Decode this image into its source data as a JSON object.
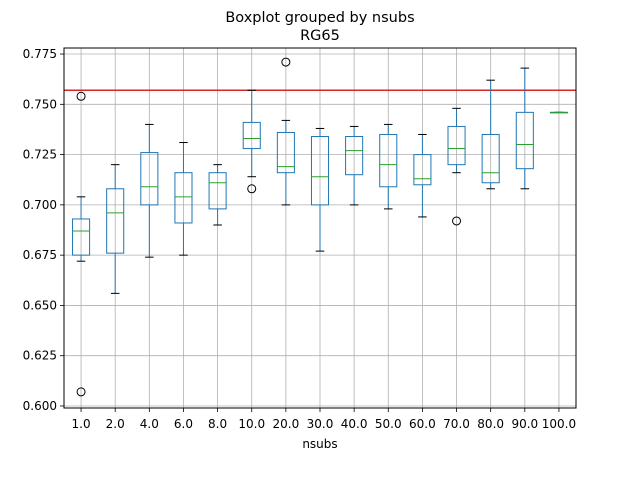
{
  "title_line1": "Boxplot grouped by nsubs",
  "title_line2": "RG65",
  "colors": {
    "box": "#1f77b4",
    "median": "#2ca02c",
    "refline": "#d62728",
    "grid": "#b0b0b0"
  },
  "chart_data": {
    "type": "boxplot",
    "xlabel": "nsubs",
    "ylabel": "",
    "ylim": [
      0.599,
      0.778
    ],
    "yticks": [
      "0.600",
      "0.625",
      "0.650",
      "0.675",
      "0.700",
      "0.725",
      "0.750",
      "0.775"
    ],
    "grid": true,
    "reference_line": 0.757,
    "categories": [
      "1.0",
      "2.0",
      "4.0",
      "6.0",
      "8.0",
      "10.0",
      "20.0",
      "30.0",
      "40.0",
      "50.0",
      "60.0",
      "70.0",
      "80.0",
      "90.0",
      "100.0"
    ],
    "boxes": [
      {
        "whislo": 0.672,
        "q1": 0.675,
        "med": 0.687,
        "q3": 0.693,
        "whishi": 0.704,
        "fliers": [
          0.754,
          0.607
        ]
      },
      {
        "whislo": 0.656,
        "q1": 0.676,
        "med": 0.696,
        "q3": 0.708,
        "whishi": 0.72,
        "fliers": []
      },
      {
        "whislo": 0.674,
        "q1": 0.7,
        "med": 0.709,
        "q3": 0.726,
        "whishi": 0.74,
        "fliers": []
      },
      {
        "whislo": 0.675,
        "q1": 0.691,
        "med": 0.704,
        "q3": 0.716,
        "whishi": 0.731,
        "fliers": []
      },
      {
        "whislo": 0.69,
        "q1": 0.698,
        "med": 0.711,
        "q3": 0.716,
        "whishi": 0.72,
        "fliers": []
      },
      {
        "whislo": 0.714,
        "q1": 0.728,
        "med": 0.733,
        "q3": 0.741,
        "whishi": 0.757,
        "fliers": [
          0.708
        ]
      },
      {
        "whislo": 0.7,
        "q1": 0.716,
        "med": 0.719,
        "q3": 0.736,
        "whishi": 0.742,
        "fliers": [
          0.771
        ]
      },
      {
        "whislo": 0.677,
        "q1": 0.7,
        "med": 0.714,
        "q3": 0.734,
        "whishi": 0.738,
        "fliers": []
      },
      {
        "whislo": 0.7,
        "q1": 0.715,
        "med": 0.727,
        "q3": 0.734,
        "whishi": 0.739,
        "fliers": []
      },
      {
        "whislo": 0.698,
        "q1": 0.709,
        "med": 0.72,
        "q3": 0.735,
        "whishi": 0.74,
        "fliers": []
      },
      {
        "whislo": 0.694,
        "q1": 0.71,
        "med": 0.713,
        "q3": 0.725,
        "whishi": 0.735,
        "fliers": []
      },
      {
        "whislo": 0.716,
        "q1": 0.72,
        "med": 0.728,
        "q3": 0.739,
        "whishi": 0.748,
        "fliers": [
          0.692
        ]
      },
      {
        "whislo": 0.708,
        "q1": 0.711,
        "med": 0.716,
        "q3": 0.735,
        "whishi": 0.762,
        "fliers": []
      },
      {
        "whislo": 0.708,
        "q1": 0.718,
        "med": 0.73,
        "q3": 0.746,
        "whishi": 0.768,
        "fliers": []
      },
      {
        "whislo": 0.746,
        "q1": 0.746,
        "med": 0.746,
        "q3": 0.746,
        "whishi": 0.746,
        "fliers": []
      }
    ]
  }
}
